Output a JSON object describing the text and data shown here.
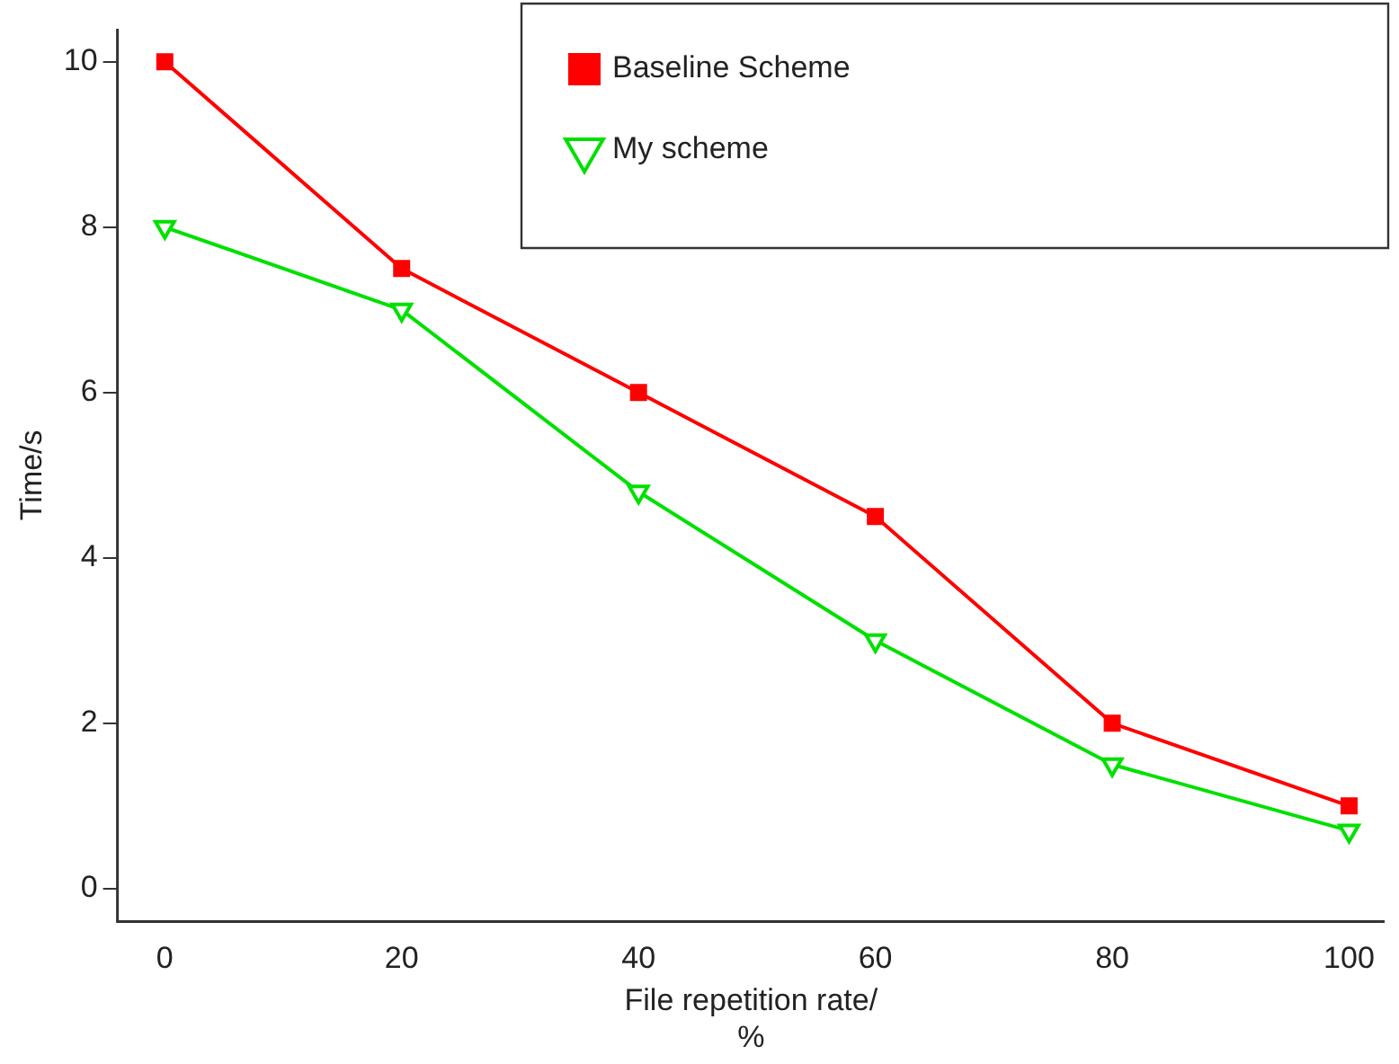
{
  "chart_data": {
    "type": "line",
    "xlabel": "File repetition rate/\n%",
    "ylabel": "Time/s",
    "x": [
      0,
      20,
      40,
      60,
      80,
      100
    ],
    "series": [
      {
        "name": "Baseline Scheme",
        "color": "#ff0000",
        "values": [
          10,
          7.5,
          6,
          4.5,
          2,
          1
        ],
        "marker": "square"
      },
      {
        "name": "My scheme",
        "color": "#00e000",
        "values": [
          8,
          7,
          4.8,
          3,
          1.5,
          0.7
        ],
        "marker": "triangle"
      }
    ],
    "xlim": [
      -4,
      103
    ],
    "xticks": [
      0,
      20,
      40,
      60,
      80,
      100
    ],
    "ylim": [
      -0.4,
      10.4
    ],
    "yticks": [
      0,
      2,
      4,
      6,
      8,
      10
    ],
    "grid": false,
    "legend": "top right",
    "line_style": "solid"
  }
}
